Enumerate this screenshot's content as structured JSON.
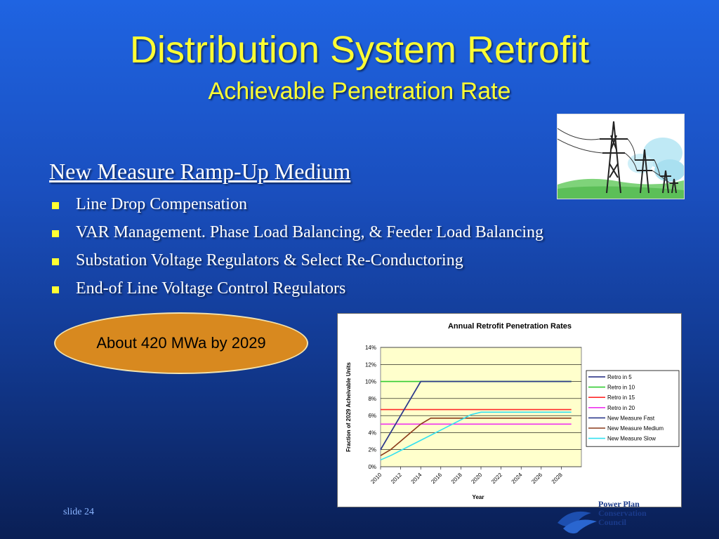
{
  "slide": {
    "title": "Distribution System Retrofit",
    "subtitle": "Achievable Penetration Rate",
    "section_heading": "New Measure Ramp-Up Medium",
    "bullets": [
      "Line Drop Compensation",
      "VAR Management. Phase Load Balancing, & Feeder Load Balancing",
      "Substation Voltage Regulators & Select Re-Conductoring",
      "End-of Line Voltage Control Regulators"
    ],
    "callout": "About 420 MWa by 2029",
    "slide_number": "slide 24",
    "logo_lines": [
      "Power Plan",
      "Conservation",
      "Council"
    ]
  },
  "colors": {
    "title": "#ffff33",
    "bullet_marker": "#ffff33",
    "callout_fill": "#d8891f",
    "plot_background": "#ffffcc"
  },
  "clipart": {
    "icon": "power-transmission-towers-icon"
  },
  "chart_data": {
    "type": "line",
    "title": "Annual Retrofit Penetration Rates",
    "xlabel": "Year",
    "ylabel": "Fraction of 2029 Acheivable Units",
    "x": [
      2010,
      2011,
      2012,
      2013,
      2014,
      2015,
      2016,
      2017,
      2018,
      2019,
      2020,
      2021,
      2022,
      2023,
      2024,
      2025,
      2026,
      2027,
      2028,
      2029
    ],
    "x_ticks": [
      "2010",
      "2012",
      "2014",
      "2016",
      "2018",
      "2020",
      "2022",
      "2024",
      "2026",
      "2028"
    ],
    "y_ticks": [
      "0%",
      "2%",
      "4%",
      "6%",
      "8%",
      "10%",
      "12%",
      "14%"
    ],
    "ylim": [
      0,
      0.14
    ],
    "grid": true,
    "legend": "right",
    "series": [
      {
        "name": "Retro in 5",
        "color": "#1a237e",
        "values": [
          0.02,
          0.04,
          0.06,
          0.08,
          0.1,
          0.1,
          0.1,
          0.1,
          0.1,
          0.1,
          0.1,
          0.1,
          0.1,
          0.1,
          0.1,
          0.1,
          0.1,
          0.1,
          0.1,
          0.1
        ]
      },
      {
        "name": "Retro in 10",
        "color": "#33cc33",
        "values": [
          0.1,
          0.1,
          0.1,
          0.1,
          0.1,
          0.1,
          0.1,
          0.1,
          0.1,
          0.1,
          0.1,
          0.1,
          0.1,
          0.1,
          0.1,
          0.1,
          0.1,
          0.1,
          0.1,
          0.1
        ]
      },
      {
        "name": "Retro in 15",
        "color": "#ff2a2a",
        "values": [
          0.067,
          0.067,
          0.067,
          0.067,
          0.067,
          0.067,
          0.067,
          0.067,
          0.067,
          0.067,
          0.067,
          0.067,
          0.067,
          0.067,
          0.067,
          0.067,
          0.067,
          0.067,
          0.067,
          0.067
        ]
      },
      {
        "name": "Retro in 20",
        "color": "#ee33ee",
        "values": [
          0.05,
          0.05,
          0.05,
          0.05,
          0.05,
          0.05,
          0.05,
          0.05,
          0.05,
          0.05,
          0.05,
          0.05,
          0.05,
          0.05,
          0.05,
          0.05,
          0.05,
          0.05,
          0.05,
          0.05
        ]
      },
      {
        "name": "New Measure Fast",
        "color": "#2e3a8c",
        "values": [
          0.02,
          0.04,
          0.06,
          0.08,
          0.1,
          0.1,
          0.1,
          0.1,
          0.1,
          0.1,
          0.1,
          0.1,
          0.1,
          0.1,
          0.1,
          0.1,
          0.1,
          0.1,
          0.1,
          0.1
        ]
      },
      {
        "name": "New Measure Medium",
        "color": "#8b3a1a",
        "values": [
          0.013,
          0.02,
          0.03,
          0.04,
          0.05,
          0.057,
          0.057,
          0.057,
          0.057,
          0.057,
          0.057,
          0.057,
          0.057,
          0.057,
          0.057,
          0.057,
          0.057,
          0.057,
          0.057,
          0.057
        ]
      },
      {
        "name": "New Measure Slow",
        "color": "#33e0f0",
        "values": [
          0.008,
          0.013,
          0.019,
          0.025,
          0.031,
          0.037,
          0.043,
          0.049,
          0.055,
          0.061,
          0.064,
          0.064,
          0.064,
          0.064,
          0.064,
          0.064,
          0.064,
          0.064,
          0.064,
          0.064
        ]
      }
    ]
  }
}
